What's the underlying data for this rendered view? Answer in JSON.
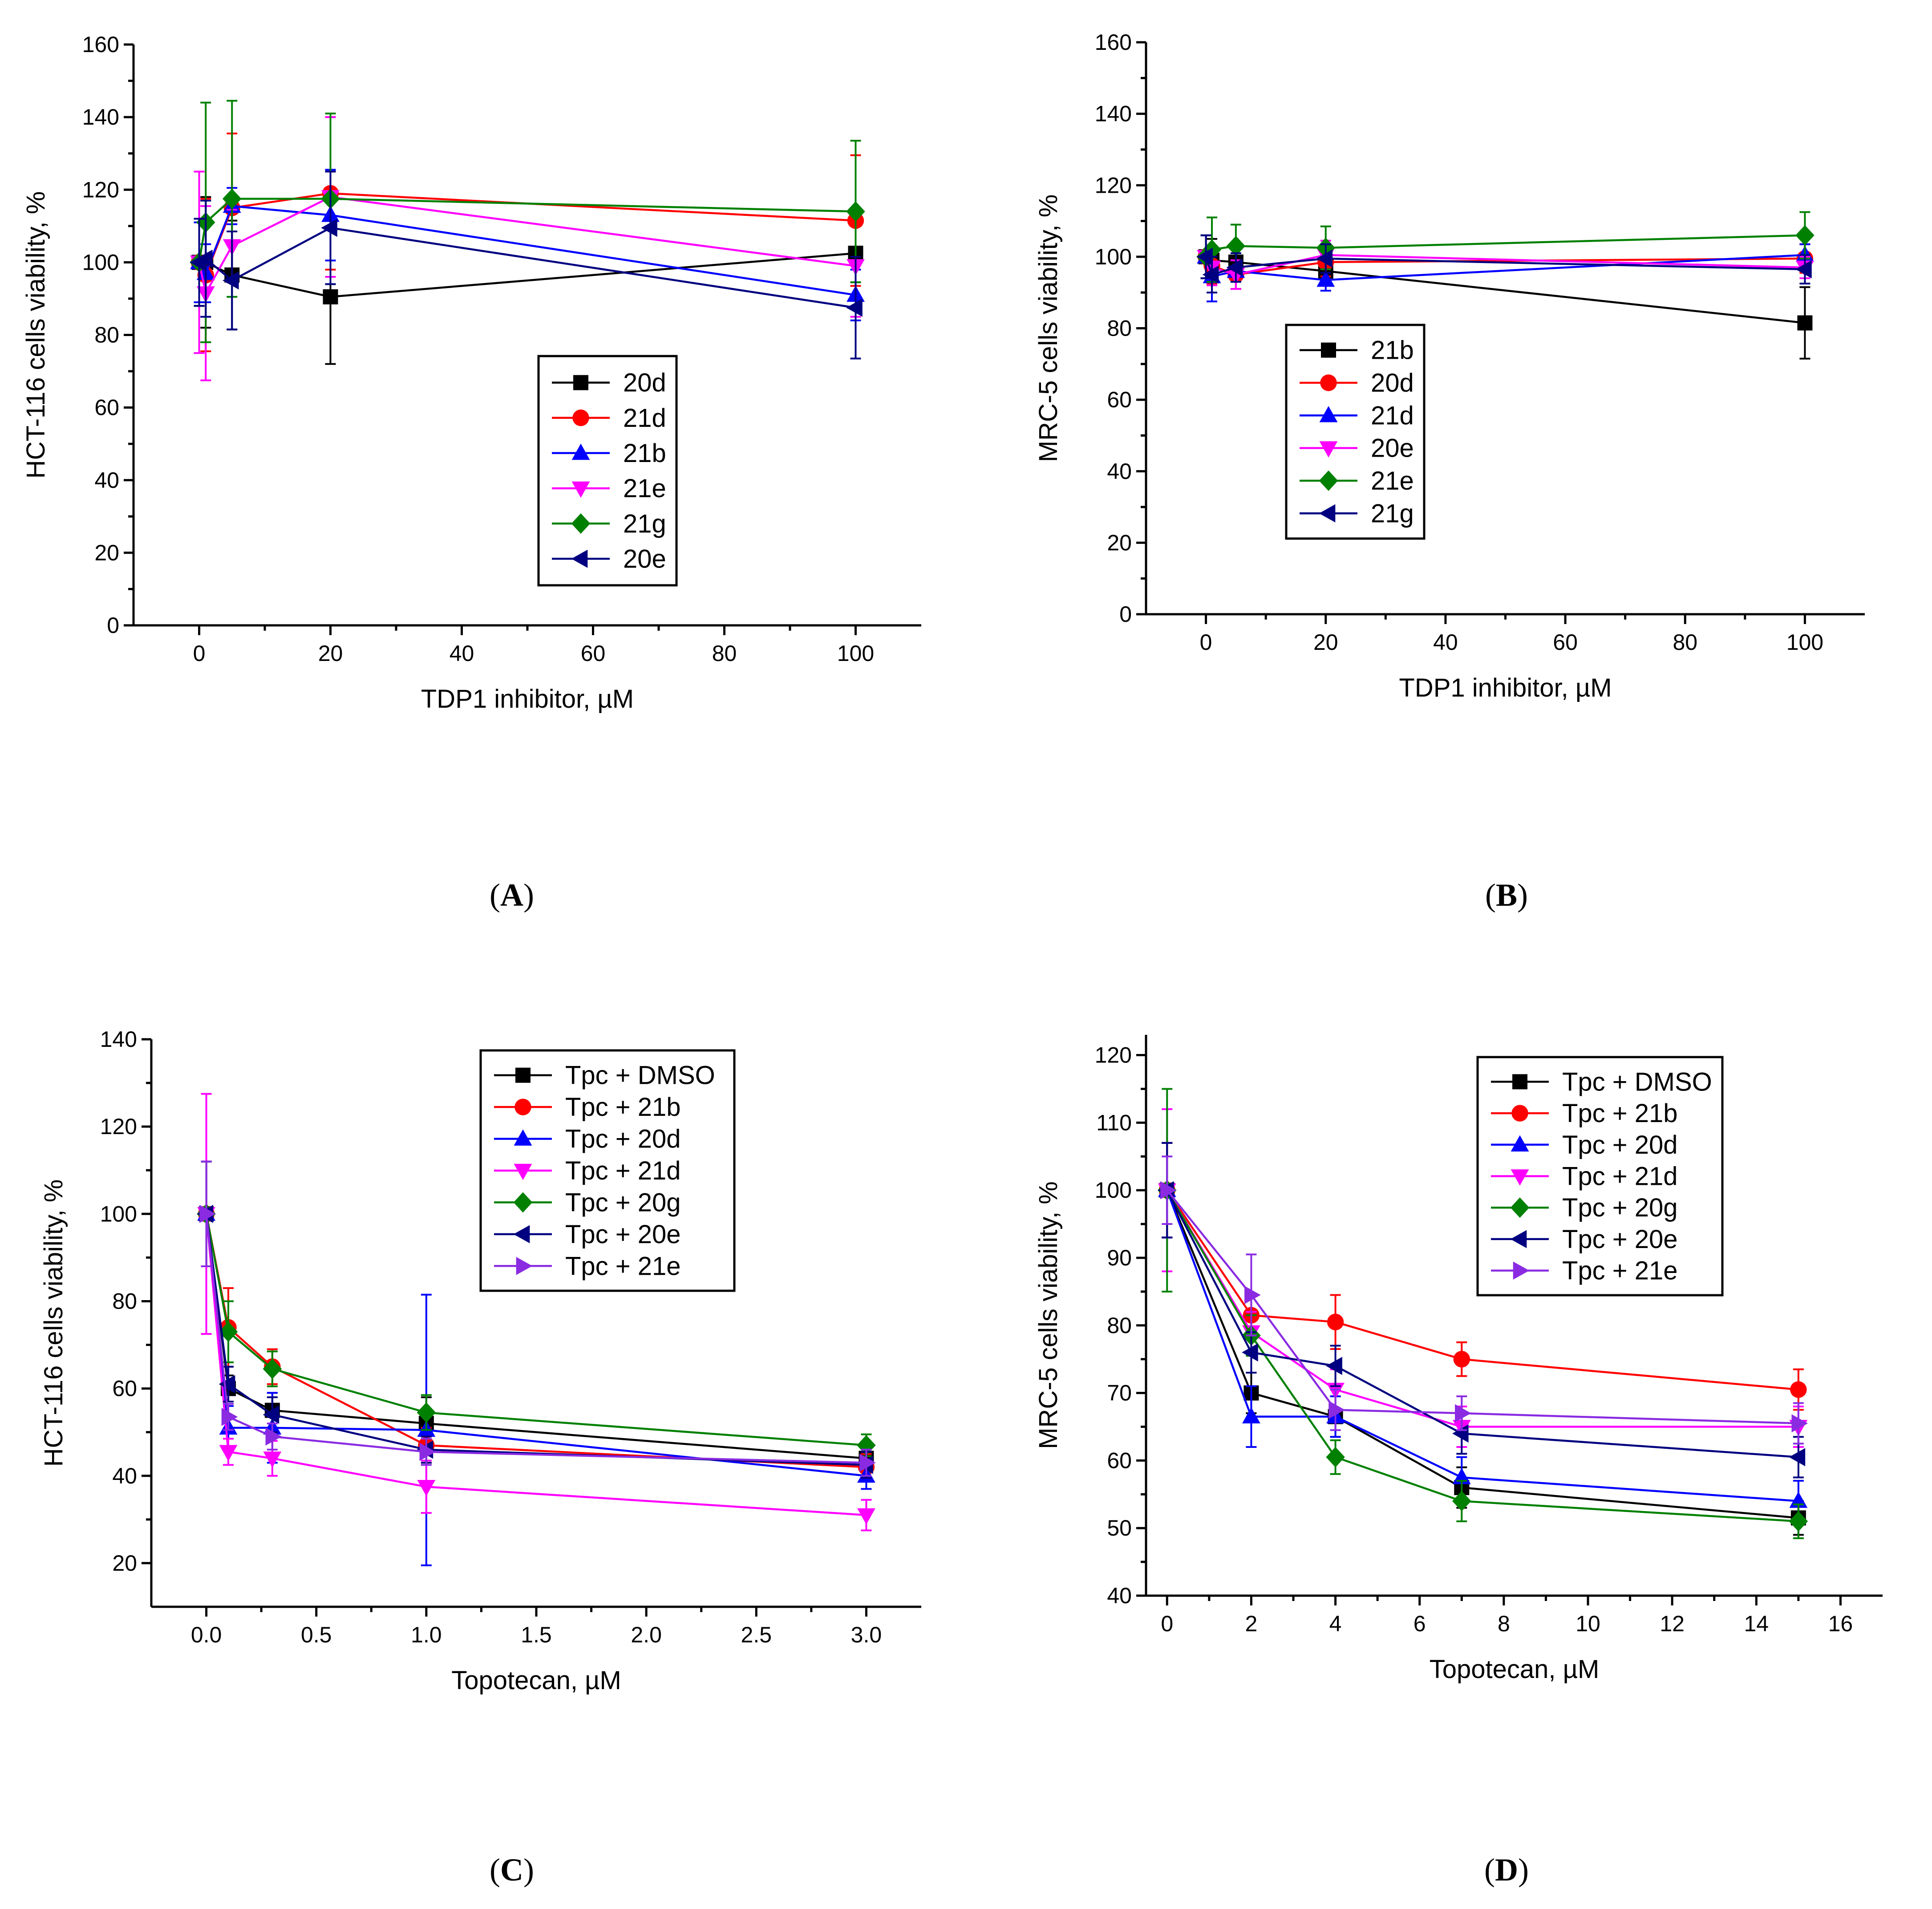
{
  "chart_data": [
    {
      "id": "A",
      "type": "line",
      "panel_label": "A",
      "xlabel": "TDP1 inhibitor, µM",
      "ylabel": "HCT-116 cells viability, %",
      "xlim": [
        -10,
        110
      ],
      "ylim": [
        0,
        160
      ],
      "xticks": [
        0,
        20,
        40,
        60,
        80,
        100
      ],
      "xtick_labels": [
        "0",
        "20",
        "40",
        "60",
        "80",
        "100"
      ],
      "yticks": [
        0,
        20,
        40,
        60,
        80,
        100,
        120,
        140,
        160
      ],
      "ytick_labels": [
        "0",
        "20",
        "40",
        "60",
        "80",
        "100",
        "120",
        "140",
        "160"
      ],
      "legend_position": "center-right",
      "series": [
        {
          "name": "20d",
          "color": "#000000",
          "marker": "square",
          "x": [
            0,
            1,
            5,
            20,
            100
          ],
          "values": [
            100,
            100,
            96.5,
            90.5,
            102.5
          ],
          "errors": [
            12,
            18,
            15,
            18.5,
            8
          ]
        },
        {
          "name": "21d",
          "color": "#ff0000",
          "marker": "circle",
          "x": [
            0,
            1,
            5,
            20,
            100
          ],
          "values": [
            100,
            96.5,
            115,
            119,
            111.5
          ],
          "errors": [
            12,
            21,
            20.5,
            21,
            18
          ]
        },
        {
          "name": "21b",
          "color": "#0000ff",
          "marker": "triangle-up",
          "x": [
            0,
            1,
            5,
            20,
            100
          ],
          "values": [
            100,
            97,
            115.5,
            113,
            91
          ],
          "errors": [
            11,
            8,
            5,
            12.5,
            7
          ]
        },
        {
          "name": "21e",
          "color": "#ff00ff",
          "marker": "triangle-down",
          "x": [
            0,
            1,
            5,
            20,
            100
          ],
          "values": [
            100,
            91.5,
            104.5,
            118,
            99
          ],
          "errors": [
            25,
            24,
            10,
            22,
            14
          ]
        },
        {
          "name": "21g",
          "color": "#008000",
          "marker": "diamond",
          "x": [
            0,
            1,
            5,
            20,
            100
          ],
          "values": [
            100,
            111,
            117.5,
            117.5,
            114
          ],
          "errors": [
            12,
            33,
            27,
            23.5,
            19.5
          ]
        },
        {
          "name": "20e",
          "color": "#000080",
          "marker": "triangle-left",
          "x": [
            0,
            1,
            5,
            20,
            100
          ],
          "values": [
            100,
            101,
            95,
            109.5,
            87.5
          ],
          "errors": [
            12,
            16,
            13.5,
            15.5,
            14
          ]
        }
      ]
    },
    {
      "id": "B",
      "type": "line",
      "panel_label": "B",
      "xlabel": "TDP1 inhibitor, µM",
      "ylabel": "MRC-5 cells viability, %",
      "xlim": [
        -10,
        110
      ],
      "ylim": [
        0,
        160
      ],
      "xticks": [
        0,
        20,
        40,
        60,
        80,
        100
      ],
      "xtick_labels": [
        "0",
        "20",
        "40",
        "60",
        "80",
        "100"
      ],
      "yticks": [
        0,
        20,
        40,
        60,
        80,
        100,
        120,
        140,
        160
      ],
      "ytick_labels": [
        "0",
        "20",
        "40",
        "60",
        "80",
        "100",
        "120",
        "140",
        "160"
      ],
      "legend_position": "lower-left",
      "series": [
        {
          "name": "21b",
          "color": "#000000",
          "marker": "square",
          "x": [
            0,
            1,
            5,
            20,
            100
          ],
          "values": [
            100,
            99,
            98.5,
            96,
            81.5
          ],
          "errors": [
            6,
            6,
            4,
            4,
            10
          ]
        },
        {
          "name": "20d",
          "color": "#ff0000",
          "marker": "circle",
          "x": [
            0,
            1,
            5,
            20,
            100
          ],
          "values": [
            100,
            97.5,
            95,
            98.5,
            99.5
          ],
          "errors": [
            6,
            5,
            4,
            4,
            4
          ]
        },
        {
          "name": "21d",
          "color": "#0000ff",
          "marker": "triangle-up",
          "x": [
            0,
            1,
            5,
            20,
            100
          ],
          "values": [
            100,
            94.5,
            96,
            93.5,
            100.5
          ],
          "errors": [
            6,
            7,
            3,
            3,
            3
          ]
        },
        {
          "name": "20e",
          "color": "#ff00ff",
          "marker": "triangle-down",
          "x": [
            0,
            1,
            5,
            20,
            100
          ],
          "values": [
            100,
            97,
            95,
            100.5,
            97
          ],
          "errors": [
            6,
            5,
            4,
            4,
            3
          ]
        },
        {
          "name": "21e",
          "color": "#008000",
          "marker": "diamond",
          "x": [
            0,
            1,
            5,
            20,
            100
          ],
          "values": [
            100,
            102,
            103,
            102.5,
            106
          ],
          "errors": [
            6,
            9,
            6,
            6,
            6.5
          ]
        },
        {
          "name": "21g",
          "color": "#000080",
          "marker": "triangle-left",
          "x": [
            0,
            1,
            5,
            20,
            100
          ],
          "values": [
            100,
            95,
            97,
            99.5,
            96.5
          ],
          "errors": [
            6,
            5,
            4,
            4,
            4
          ]
        }
      ]
    },
    {
      "id": "C",
      "type": "line",
      "panel_label": "C",
      "xlabel": "Topotecan, µM",
      "ylabel": "HCT-116 cells viability, %",
      "xlim": [
        -0.25,
        3.25
      ],
      "ylim": [
        10,
        140
      ],
      "xticks": [
        0,
        0.5,
        1,
        1.5,
        2,
        2.5,
        3
      ],
      "xtick_labels": [
        "0.0",
        "0.5",
        "1.0",
        "1.5",
        "2.0",
        "2.5",
        "3.0"
      ],
      "yticks": [
        20,
        40,
        60,
        80,
        100,
        120,
        140
      ],
      "ytick_labels": [
        "20",
        "40",
        "60",
        "80",
        "100",
        "120",
        "140"
      ],
      "legend_position": "top-right",
      "series": [
        {
          "name": "Tpc + DMSO",
          "color": "#000000",
          "marker": "square",
          "x": [
            0,
            0.1,
            0.3,
            1,
            3
          ],
          "values": [
            100,
            60,
            55,
            52,
            44
          ],
          "errors": [
            12,
            3,
            4,
            6,
            3
          ]
        },
        {
          "name": "Tpc + 21b",
          "color": "#ff0000",
          "marker": "circle",
          "x": [
            0,
            0.1,
            0.3,
            1,
            3
          ],
          "values": [
            100,
            74,
            65,
            47,
            42
          ],
          "errors": [
            12,
            9,
            4,
            4,
            3
          ]
        },
        {
          "name": "Tpc + 20d",
          "color": "#0000ff",
          "marker": "triangle-up",
          "x": [
            0,
            0.1,
            0.3,
            1,
            3
          ],
          "values": [
            100,
            51,
            51,
            50.5,
            40
          ],
          "errors": [
            12,
            5,
            8,
            31,
            3
          ]
        },
        {
          "name": "Tpc + 21d",
          "color": "#ff00ff",
          "marker": "triangle-down",
          "x": [
            0,
            0.1,
            0.3,
            1,
            3
          ],
          "values": [
            100,
            45.5,
            44,
            37.5,
            31
          ],
          "errors": [
            27.5,
            3,
            4,
            6,
            3.5
          ]
        },
        {
          "name": "Tpc + 20g",
          "color": "#008000",
          "marker": "diamond",
          "x": [
            0,
            0.1,
            0.3,
            1,
            3
          ],
          "values": [
            100,
            73,
            64.5,
            54.5,
            47
          ],
          "errors": [
            12,
            7,
            4,
            4,
            2.5
          ]
        },
        {
          "name": "Tpc + 20e",
          "color": "#000080",
          "marker": "triangle-left",
          "x": [
            0,
            0.1,
            0.3,
            1,
            3
          ],
          "values": [
            100,
            61,
            54,
            46,
            42.5
          ],
          "errors": [
            12,
            4,
            4,
            3,
            3
          ]
        },
        {
          "name": "Tpc + 21e",
          "color": "#8a2be2",
          "marker": "triangle-right",
          "x": [
            0,
            0.1,
            0.3,
            1,
            3
          ],
          "values": [
            100,
            53.5,
            49,
            45.5,
            43
          ],
          "errors": [
            12,
            3,
            3,
            3,
            3
          ]
        }
      ]
    },
    {
      "id": "D",
      "type": "line",
      "panel_label": "D",
      "xlabel": "Topotecan, µM",
      "ylabel": "MRC-5 cells viability, %",
      "xlim": [
        -0.5,
        17
      ],
      "ylim": [
        40,
        123
      ],
      "xticks": [
        0,
        2,
        4,
        6,
        8,
        10,
        12,
        14,
        16
      ],
      "xtick_labels": [
        "0",
        "2",
        "4",
        "6",
        "8",
        "10",
        "12",
        "14",
        "16"
      ],
      "yticks": [
        40,
        50,
        60,
        70,
        80,
        90,
        100,
        110,
        120
      ],
      "ytick_labels": [
        "40",
        "50",
        "60",
        "70",
        "80",
        "90",
        "100",
        "110",
        "120"
      ],
      "legend_position": "top-right",
      "series": [
        {
          "name": "Tpc + DMSO",
          "color": "#000000",
          "marker": "square",
          "x": [
            0,
            2,
            4,
            7,
            15
          ],
          "values": [
            100,
            70,
            66.5,
            56,
            51.5
          ],
          "errors": [
            7,
            3,
            3,
            3,
            2.5
          ]
        },
        {
          "name": "Tpc + 21b",
          "color": "#ff0000",
          "marker": "circle",
          "x": [
            0,
            2,
            4,
            7,
            15
          ],
          "values": [
            100,
            81.5,
            80.5,
            75,
            70.5
          ],
          "errors": [
            7,
            3,
            4,
            2.5,
            3
          ]
        },
        {
          "name": "Tpc + 20d",
          "color": "#0000ff",
          "marker": "triangle-up",
          "x": [
            0,
            2,
            4,
            7,
            15
          ],
          "values": [
            100,
            66.5,
            66.5,
            57.5,
            54
          ],
          "errors": [
            7,
            4.5,
            3,
            3,
            3
          ]
        },
        {
          "name": "Tpc + 21d",
          "color": "#ff00ff",
          "marker": "triangle-down",
          "x": [
            0,
            2,
            4,
            7,
            15
          ],
          "values": [
            100,
            79,
            70.5,
            65,
            65
          ],
          "errors": [
            12,
            3,
            3,
            3,
            3
          ]
        },
        {
          "name": "Tpc + 20g",
          "color": "#008000",
          "marker": "diamond",
          "x": [
            0,
            2,
            4,
            7,
            15
          ],
          "values": [
            100,
            78.5,
            60.5,
            54,
            51
          ],
          "errors": [
            15,
            3,
            2.5,
            3,
            2.5
          ]
        },
        {
          "name": "Tpc + 20e",
          "color": "#000080",
          "marker": "triangle-left",
          "x": [
            0,
            2,
            4,
            7,
            15
          ],
          "values": [
            100,
            76,
            74,
            64,
            60.5
          ],
          "errors": [
            7,
            3,
            3,
            3,
            3
          ]
        },
        {
          "name": "Tpc + 21e",
          "color": "#8a2be2",
          "marker": "triangle-right",
          "x": [
            0,
            2,
            4,
            7,
            15
          ],
          "values": [
            100,
            84.5,
            67.5,
            67,
            65.5
          ],
          "errors": [
            5,
            6,
            3,
            2.5,
            3
          ]
        }
      ]
    }
  ]
}
